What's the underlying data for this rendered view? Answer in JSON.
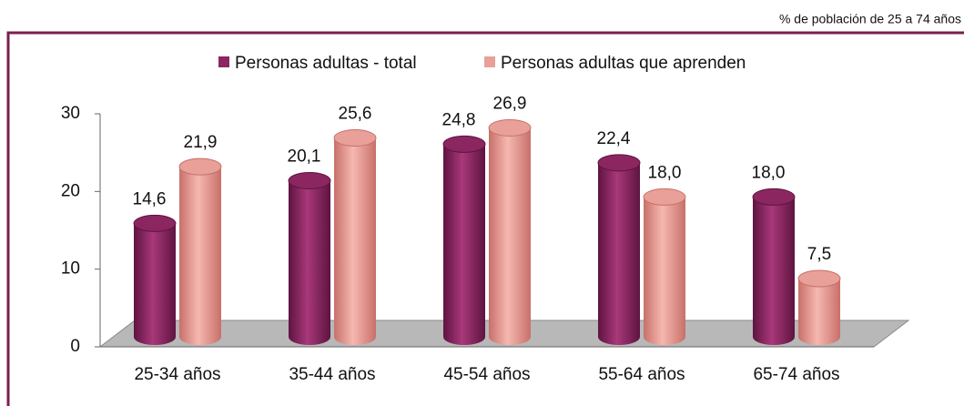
{
  "chart_data": {
    "type": "bar",
    "subtitle": "% de población de 25 a 74 años",
    "categories": [
      "25-34 años",
      "35-44 años",
      "45-54 años",
      "55-64 años",
      "65-74 años"
    ],
    "series": [
      {
        "name": "Personas adultas - total",
        "color": "#8b2660",
        "values": [
          14.6,
          20.1,
          24.8,
          22.4,
          18.0
        ],
        "value_labels": [
          "14,6",
          "20,1",
          "24,8",
          "22,4",
          "18,0"
        ]
      },
      {
        "name": "Personas adultas que aprenden",
        "color": "#e8a098",
        "values": [
          21.9,
          25.6,
          26.9,
          18.0,
          7.5
        ],
        "value_labels": [
          "21,9",
          "25,6",
          "26,9",
          "18,0",
          "7,5"
        ]
      }
    ],
    "ylim": [
      0,
      30
    ],
    "yticks": [
      0,
      10,
      20,
      30
    ],
    "grid": false,
    "legend": "top"
  }
}
